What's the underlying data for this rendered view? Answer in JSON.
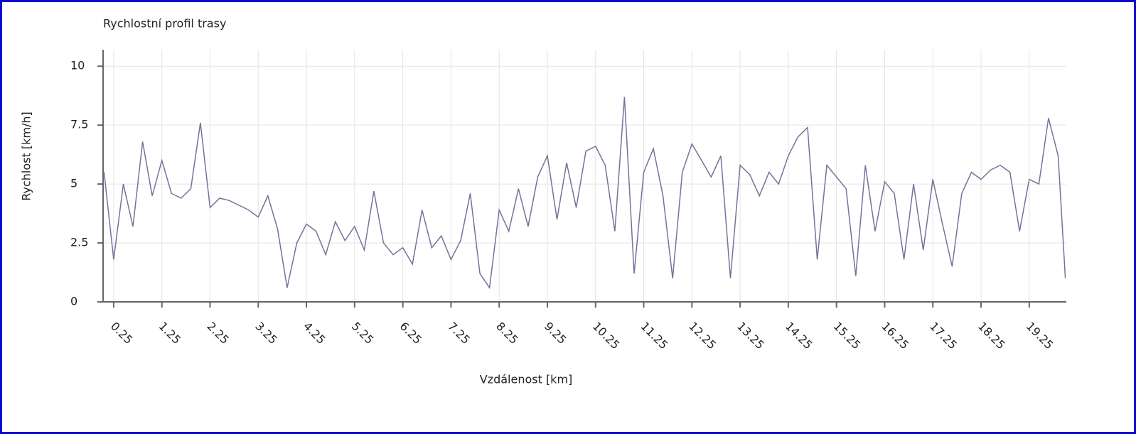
{
  "chart_data": {
    "type": "line",
    "title": "Rychlostní profil trasy",
    "x_label": "Vzdálenost [km]",
    "y_label": "Rychlost [km/h]",
    "x": [
      0.05,
      0.25,
      0.45,
      0.65,
      0.85,
      1.05,
      1.25,
      1.45,
      1.65,
      1.85,
      2.05,
      2.25,
      2.45,
      2.65,
      2.85,
      3.05,
      3.25,
      3.45,
      3.65,
      3.85,
      4.05,
      4.25,
      4.45,
      4.65,
      4.85,
      5.05,
      5.25,
      5.45,
      5.65,
      5.85,
      6.05,
      6.25,
      6.45,
      6.65,
      6.85,
      7.05,
      7.25,
      7.45,
      7.65,
      7.85,
      8.05,
      8.25,
      8.45,
      8.65,
      8.85,
      9.05,
      9.25,
      9.45,
      9.65,
      9.85,
      10.05,
      10.25,
      10.45,
      10.65,
      10.85,
      11.05,
      11.25,
      11.45,
      11.65,
      11.85,
      12.05,
      12.25,
      12.45,
      12.65,
      12.85,
      13.05,
      13.25,
      13.45,
      13.65,
      13.85,
      14.05,
      14.25,
      14.45,
      14.65,
      14.85,
      15.05,
      15.25,
      15.45,
      15.65,
      15.85,
      16.05,
      16.25,
      16.45,
      16.65,
      16.85,
      17.05,
      17.25,
      17.45,
      17.65,
      17.85,
      18.05,
      18.25,
      18.45,
      18.65,
      18.85,
      19.05,
      19.25,
      19.45,
      19.65,
      19.85,
      20.0
    ],
    "series": [
      {
        "name": "Rychlost",
        "color": "#73739b",
        "values": [
          5.5,
          1.8,
          5.0,
          3.2,
          6.8,
          4.5,
          6.0,
          4.6,
          4.4,
          4.8,
          7.6,
          4.0,
          4.4,
          4.3,
          4.1,
          3.9,
          3.6,
          4.5,
          3.1,
          0.6,
          2.5,
          3.3,
          3.0,
          2.0,
          3.4,
          2.6,
          3.2,
          2.2,
          4.7,
          2.5,
          2.0,
          2.3,
          1.6,
          3.9,
          2.3,
          2.8,
          1.8,
          2.6,
          4.6,
          1.2,
          0.6,
          3.9,
          3.0,
          4.8,
          3.2,
          5.3,
          6.2,
          3.5,
          5.9,
          4.0,
          6.4,
          6.6,
          5.8,
          3.0,
          8.7,
          1.2,
          5.5,
          6.5,
          4.5,
          1.0,
          5.5,
          6.7,
          6.0,
          5.3,
          6.2,
          1.0,
          5.8,
          5.4,
          4.5,
          5.5,
          5.0,
          6.2,
          7.0,
          7.4,
          1.8,
          5.8,
          5.3,
          4.8,
          1.1,
          5.8,
          3.0,
          5.1,
          4.6,
          1.8,
          5.0,
          2.2,
          5.2,
          3.3,
          1.5,
          4.6,
          5.5,
          5.2,
          5.6,
          5.8,
          5.5,
          3.0,
          5.2,
          5.0,
          7.8,
          6.2,
          1.0
        ]
      }
    ],
    "xlim": [
      0.03,
      20.02
    ],
    "ylim": [
      0,
      10.7
    ],
    "xticks": [
      0.25,
      1.25,
      2.25,
      3.25,
      4.25,
      5.25,
      6.25,
      7.25,
      8.25,
      9.25,
      10.25,
      11.25,
      12.25,
      13.25,
      14.25,
      15.25,
      16.25,
      17.25,
      18.25,
      19.25
    ],
    "yticks": [
      0,
      2.5,
      5,
      7.5,
      10
    ],
    "grid": true
  }
}
